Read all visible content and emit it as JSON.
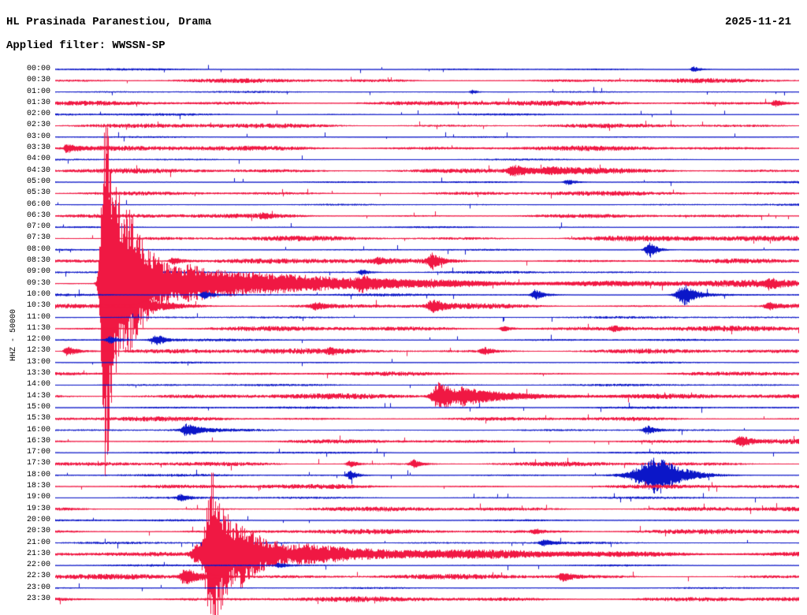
{
  "header": {
    "station": "HL Prasinada Paranestiou, Drama",
    "date": "2025-11-21",
    "filter": "Applied filter: WWSSN-SP",
    "scale": "HHZ - 50000"
  },
  "chart_data": {
    "type": "line",
    "subtype": "helicorder-seismogram",
    "title": "HL Prasinada Paranestiou, Drama",
    "date": "2025-11-21",
    "filter": "WWSSN-SP",
    "channel_scale_label": "HHZ - 50000",
    "minutes_per_line": 30,
    "time_start": "00:00",
    "time_end": "23:30",
    "colors": {
      "red": "#f01843",
      "blue": "#0b16c8"
    },
    "rows": [
      {
        "time": "00:00",
        "color": "blue",
        "noise": 0.8,
        "events": [
          {
            "x": 0.858,
            "amp": 3.5,
            "rise": 3,
            "decay": 10
          }
        ]
      },
      {
        "time": "00:30",
        "color": "red",
        "noise": 1.9,
        "events": []
      },
      {
        "time": "01:00",
        "color": "blue",
        "noise": 0.7,
        "events": [
          {
            "x": 0.561,
            "amp": 2.5,
            "rise": 3,
            "decay": 8
          }
        ]
      },
      {
        "time": "01:30",
        "color": "red",
        "noise": 1.8,
        "events": [
          {
            "x": 0.969,
            "amp": 4,
            "rise": 4,
            "decay": 10
          }
        ]
      },
      {
        "time": "02:00",
        "color": "blue",
        "noise": 0.9,
        "events": []
      },
      {
        "time": "02:30",
        "color": "red",
        "noise": 1.7,
        "events": []
      },
      {
        "time": "03:00",
        "color": "blue",
        "noise": 0.7,
        "events": []
      },
      {
        "time": "03:30",
        "color": "red",
        "noise": 1.8,
        "events": [
          {
            "x": 0.016,
            "amp": 5,
            "rise": 3,
            "decay": 12
          }
        ]
      },
      {
        "time": "04:00",
        "color": "blue",
        "noise": 0.8,
        "events": []
      },
      {
        "time": "04:30",
        "color": "red",
        "noise": 1.8,
        "events": [
          {
            "x": 0.614,
            "amp": 6,
            "rise": 4,
            "decay": 25
          },
          {
            "x": 0.66,
            "amp": 2.5,
            "rise": 4,
            "decay": 60
          }
        ]
      },
      {
        "time": "05:00",
        "color": "blue",
        "noise": 0.8,
        "events": [
          {
            "x": 0.689,
            "amp": 3.5,
            "rise": 4,
            "decay": 12
          }
        ]
      },
      {
        "time": "05:30",
        "color": "red",
        "noise": 1.7,
        "events": []
      },
      {
        "time": "06:00",
        "color": "blue",
        "noise": 0.8,
        "events": []
      },
      {
        "time": "06:30",
        "color": "red",
        "noise": 1.8,
        "events": [
          {
            "x": 0.28,
            "amp": 2.5,
            "rise": 4,
            "decay": 10
          }
        ]
      },
      {
        "time": "07:00",
        "color": "blue",
        "noise": 0.8,
        "events": []
      },
      {
        "time": "07:30",
        "color": "red",
        "noise": 2.1,
        "events": []
      },
      {
        "time": "08:00",
        "color": "blue",
        "noise": 0.8,
        "events": [
          {
            "x": 0.8,
            "amp": 9,
            "rise": 5,
            "decay": 9
          }
        ]
      },
      {
        "time": "08:30",
        "color": "red",
        "noise": 1.9,
        "events": [
          {
            "x": 0.159,
            "amp": 5,
            "rise": 4,
            "decay": 12
          },
          {
            "x": 0.434,
            "amp": 3,
            "rise": 4,
            "decay": 10
          },
          {
            "x": 0.508,
            "amp": 9,
            "rise": 5,
            "decay": 10
          }
        ]
      },
      {
        "time": "09:00",
        "color": "blue",
        "noise": 0.9,
        "events": [
          {
            "x": 0.413,
            "amp": 3,
            "rise": 4,
            "decay": 10
          }
        ]
      },
      {
        "time": "09:30",
        "color": "red",
        "noise": 2.2,
        "events": [
          {
            "x": 0.067,
            "amp": 230,
            "rise": 4,
            "decay": 22
          },
          {
            "x": 0.1,
            "amp": 30,
            "rise": 4,
            "decay": 90
          },
          {
            "x": 0.18,
            "amp": 8,
            "rise": 6,
            "decay": 250
          },
          {
            "x": 0.413,
            "amp": 6,
            "rise": 4,
            "decay": 12
          },
          {
            "x": 0.959,
            "amp": 4,
            "rise": 4,
            "decay": 10
          }
        ]
      },
      {
        "time": "10:00",
        "color": "blue",
        "noise": 1.0,
        "events": [
          {
            "x": 0.201,
            "amp": 5,
            "rise": 4,
            "decay": 10
          },
          {
            "x": 0.646,
            "amp": 6,
            "rise": 4,
            "decay": 10
          },
          {
            "x": 0.847,
            "amp": 12,
            "rise": 8,
            "decay": 14
          }
        ]
      },
      {
        "time": "10:30",
        "color": "red",
        "noise": 2.2,
        "events": [
          {
            "x": 0.122,
            "amp": 7,
            "rise": 5,
            "decay": 25
          },
          {
            "x": 0.35,
            "amp": 4,
            "rise": 4,
            "decay": 12
          },
          {
            "x": 0.508,
            "amp": 7,
            "rise": 5,
            "decay": 14
          },
          {
            "x": 0.959,
            "amp": 4,
            "rise": 4,
            "decay": 10
          }
        ]
      },
      {
        "time": "11:00",
        "color": "blue",
        "noise": 0.8,
        "events": []
      },
      {
        "time": "11:30",
        "color": "red",
        "noise": 1.8,
        "events": [
          {
            "x": 0.604,
            "amp": 3.5,
            "rise": 4,
            "decay": 10
          },
          {
            "x": 0.752,
            "amp": 3,
            "rise": 4,
            "decay": 8
          }
        ]
      },
      {
        "time": "12:00",
        "color": "blue",
        "noise": 1.0,
        "events": [
          {
            "x": 0.074,
            "amp": 5,
            "rise": 4,
            "decay": 10
          },
          {
            "x": 0.138,
            "amp": 6,
            "rise": 6,
            "decay": 10
          }
        ]
      },
      {
        "time": "12:30",
        "color": "red",
        "noise": 1.9,
        "events": [
          {
            "x": 0.016,
            "amp": 6,
            "rise": 3,
            "decay": 14
          },
          {
            "x": 0.371,
            "amp": 3,
            "rise": 4,
            "decay": 8
          },
          {
            "x": 0.577,
            "amp": 4,
            "rise": 4,
            "decay": 10
          }
        ]
      },
      {
        "time": "13:00",
        "color": "blue",
        "noise": 0.8,
        "events": []
      },
      {
        "time": "13:30",
        "color": "red",
        "noise": 1.8,
        "events": []
      },
      {
        "time": "14:00",
        "color": "blue",
        "noise": 0.8,
        "events": []
      },
      {
        "time": "14:30",
        "color": "red",
        "noise": 1.9,
        "events": [
          {
            "x": 0.517,
            "amp": 16,
            "rise": 7,
            "decay": 30
          },
          {
            "x": 0.55,
            "amp": 5,
            "rise": 5,
            "decay": 110
          }
        ]
      },
      {
        "time": "15:00",
        "color": "blue",
        "noise": 0.8,
        "events": []
      },
      {
        "time": "15:30",
        "color": "red",
        "noise": 1.8,
        "events": []
      },
      {
        "time": "16:00",
        "color": "blue",
        "noise": 0.9,
        "events": [
          {
            "x": 0.177,
            "amp": 7,
            "rise": 5,
            "decay": 18
          },
          {
            "x": 0.797,
            "amp": 5,
            "rise": 5,
            "decay": 10
          }
        ]
      },
      {
        "time": "16:30",
        "color": "red",
        "noise": 1.8,
        "events": [
          {
            "x": 0.922,
            "amp": 6,
            "rise": 5,
            "decay": 12
          }
        ]
      },
      {
        "time": "17:00",
        "color": "blue",
        "noise": 0.8,
        "events": []
      },
      {
        "time": "17:30",
        "color": "red",
        "noise": 1.9,
        "events": [
          {
            "x": 0.397,
            "amp": 4,
            "rise": 4,
            "decay": 10
          },
          {
            "x": 0.482,
            "amp": 5,
            "rise": 4,
            "decay": 10
          }
        ]
      },
      {
        "time": "18:00",
        "color": "blue",
        "noise": 0.9,
        "events": [
          {
            "x": 0.397,
            "amp": 5,
            "rise": 4,
            "decay": 10
          },
          {
            "x": 0.813,
            "amp": 22,
            "rise": 22,
            "decay": 28
          }
        ]
      },
      {
        "time": "18:30",
        "color": "red",
        "noise": 1.9,
        "events": []
      },
      {
        "time": "19:00",
        "color": "blue",
        "noise": 0.8,
        "events": [
          {
            "x": 0.169,
            "amp": 4,
            "rise": 4,
            "decay": 10
          }
        ]
      },
      {
        "time": "19:30",
        "color": "red",
        "noise": 1.8,
        "events": []
      },
      {
        "time": "20:00",
        "color": "blue",
        "noise": 0.8,
        "events": []
      },
      {
        "time": "20:30",
        "color": "red",
        "noise": 1.8,
        "events": [
          {
            "x": 0.646,
            "amp": 2.5,
            "rise": 4,
            "decay": 8
          }
        ]
      },
      {
        "time": "21:00",
        "color": "blue",
        "noise": 0.8,
        "events": [
          {
            "x": 0.657,
            "amp": 4,
            "rise": 4,
            "decay": 10
          }
        ]
      },
      {
        "time": "21:30",
        "color": "red",
        "noise": 2.0,
        "events": [
          {
            "x": 0.19,
            "amp": 10,
            "rise": 5,
            "decay": 12
          },
          {
            "x": 0.212,
            "amp": 100,
            "rise": 7,
            "decay": 24
          },
          {
            "x": 0.25,
            "amp": 18,
            "rise": 5,
            "decay": 80
          },
          {
            "x": 0.33,
            "amp": 5,
            "rise": 5,
            "decay": 250
          }
        ]
      },
      {
        "time": "22:00",
        "color": "blue",
        "noise": 0.8,
        "events": [
          {
            "x": 0.302,
            "amp": 3,
            "rise": 4,
            "decay": 8
          }
        ]
      },
      {
        "time": "22:30",
        "color": "red",
        "noise": 1.9,
        "events": [
          {
            "x": 0.175,
            "amp": 9,
            "rise": 5,
            "decay": 25
          },
          {
            "x": 0.683,
            "amp": 5,
            "rise": 4,
            "decay": 12
          }
        ]
      },
      {
        "time": "23:00",
        "color": "blue",
        "noise": 0.8,
        "events": []
      },
      {
        "time": "23:30",
        "color": "red",
        "noise": 1.8,
        "events": []
      }
    ]
  }
}
